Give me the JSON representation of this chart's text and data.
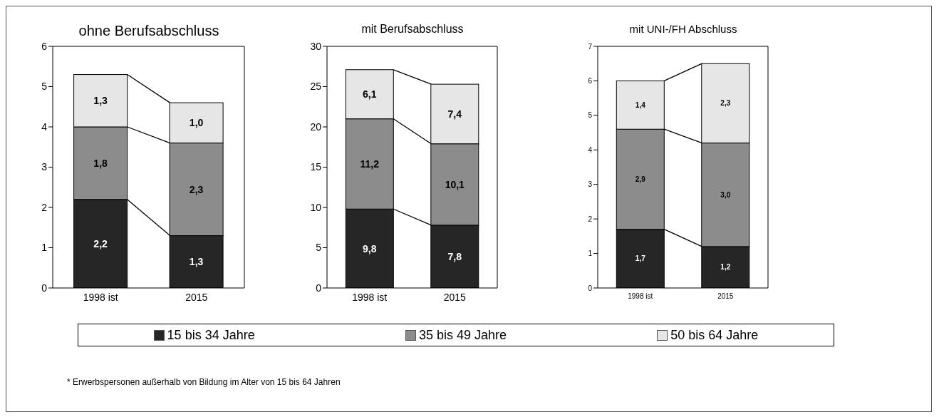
{
  "chart_data": [
    {
      "type": "bar",
      "title": "ohne Berufsabschluss",
      "stacked": true,
      "categories": [
        "1998 ist",
        "2015"
      ],
      "ylim": [
        0,
        6
      ],
      "yticks": [
        0,
        1,
        2,
        3,
        4,
        5,
        6
      ],
      "legend": "bottom",
      "annotations": [
        "* Erwerbspersonen außerhalb von Bildung im Alter von 15 bis 64 Jahren"
      ],
      "series": [
        {
          "name": "15 bis 34 Jahre",
          "color": "#262626",
          "values": [
            2.2,
            1.3
          ],
          "value_labels": [
            "2,2",
            "1,3"
          ]
        },
        {
          "name": "35 bis 49 Jahre",
          "color": "#8c8c8c",
          "values": [
            1.8,
            2.3
          ],
          "value_labels": [
            "1,8",
            "2,3"
          ]
        },
        {
          "name": "50 bis 64 Jahre",
          "color": "#e6e6e6",
          "values": [
            1.3,
            1.0
          ],
          "value_labels": [
            "1,3",
            "1,0"
          ]
        }
      ]
    },
    {
      "type": "bar",
      "title": "mit Berufsabschluss",
      "stacked": true,
      "categories": [
        "1998 ist",
        "2015"
      ],
      "ylim": [
        0,
        30
      ],
      "yticks": [
        0,
        5,
        10,
        15,
        20,
        25,
        30
      ],
      "series": [
        {
          "color": "#262626",
          "values": [
            9.8,
            7.8
          ],
          "value_labels": [
            "9,8",
            "7,8"
          ]
        },
        {
          "color": "#8c8c8c",
          "values": [
            11.2,
            10.1
          ],
          "value_labels": [
            "11,2",
            "10,1"
          ]
        },
        {
          "color": "#e6e6e6",
          "values": [
            6.1,
            7.4
          ],
          "value_labels": [
            "6,1",
            "7,4"
          ]
        }
      ]
    },
    {
      "type": "bar",
      "title": "mit UNI-/FH Abschluss",
      "stacked": true,
      "categories": [
        "1998 ist",
        "2015"
      ],
      "ylim": [
        0,
        7
      ],
      "yticks": [
        0,
        1,
        2,
        3,
        4,
        5,
        6,
        7
      ],
      "series": [
        {
          "color": "#262626",
          "values": [
            1.7,
            1.2
          ],
          "value_labels": [
            "1,7",
            "1,2"
          ]
        },
        {
          "color": "#8c8c8c",
          "values": [
            2.9,
            3.0
          ],
          "value_labels": [
            "2,9",
            "3,0"
          ]
        },
        {
          "color": "#e6e6e6",
          "values": [
            1.4,
            2.3
          ],
          "value_labels": [
            "1,4",
            "2,3"
          ]
        }
      ]
    }
  ]
}
